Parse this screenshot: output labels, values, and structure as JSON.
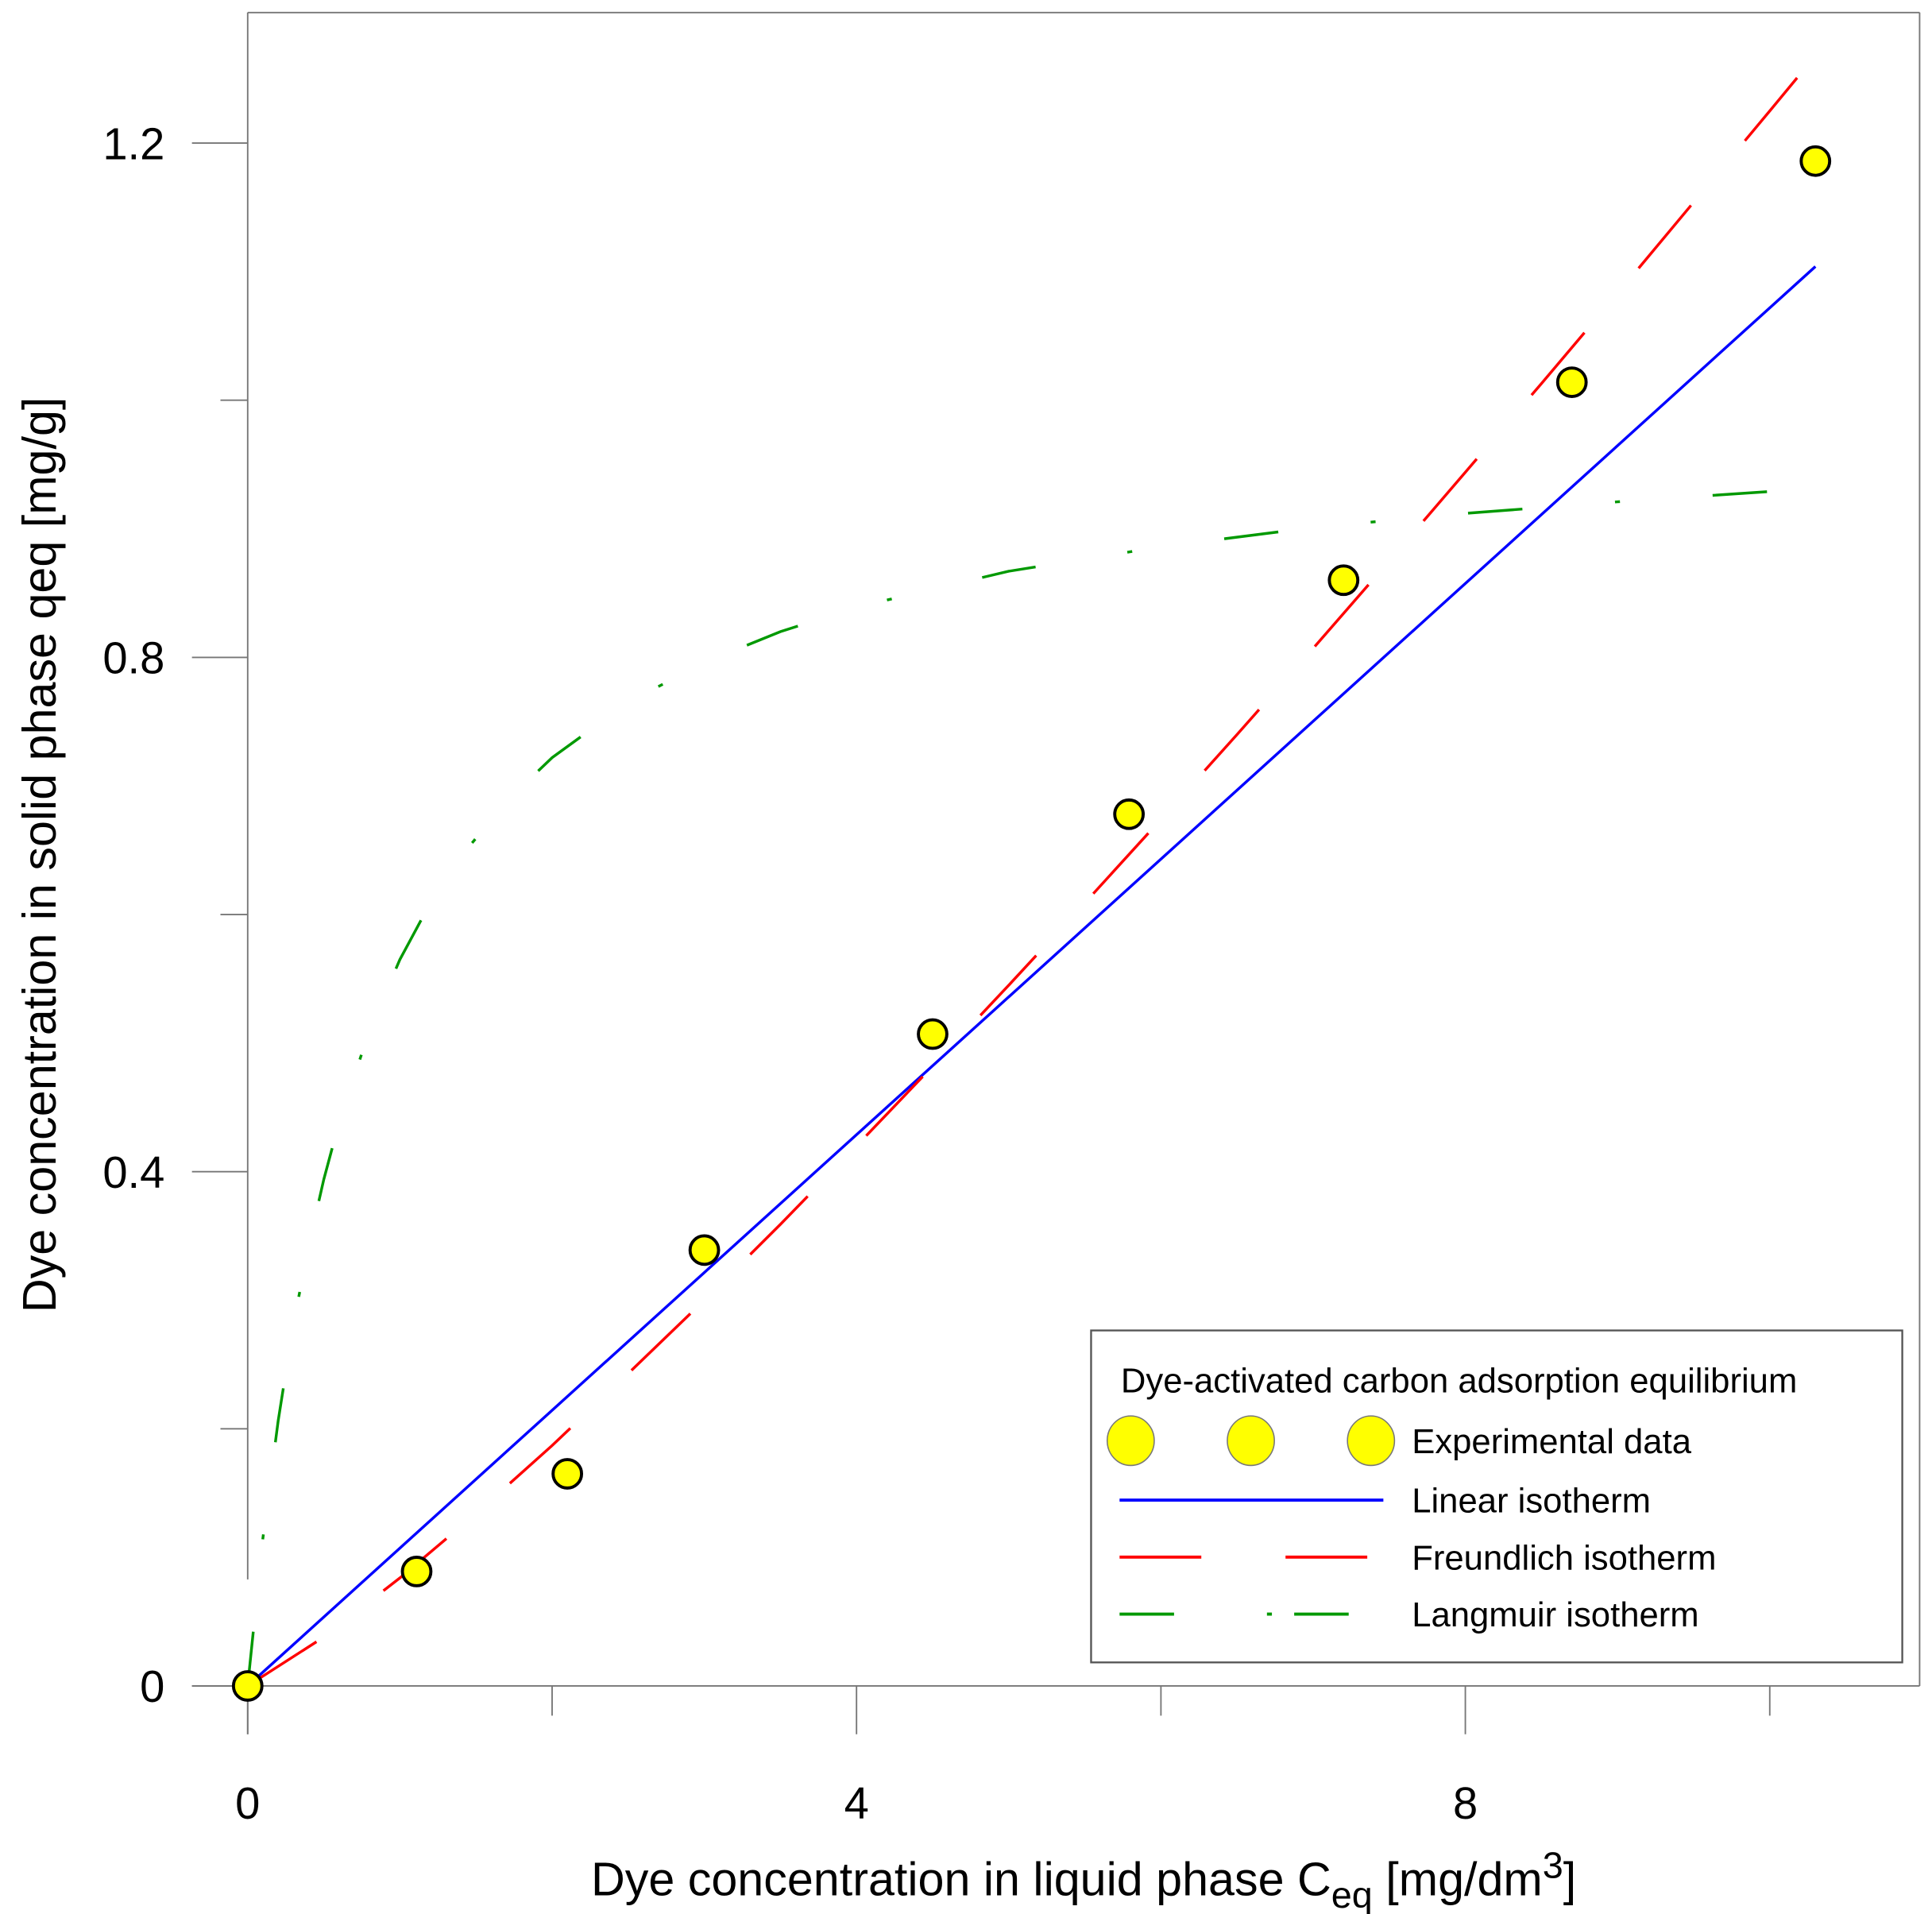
{
  "chart_data": {
    "type": "scatter",
    "title": "",
    "xlabel": "Dye concentration in liquid phase C",
    "xlabel_sub": "eq",
    "xlabel_unit_pre": " [mg/dm",
    "xlabel_sup": "3",
    "xlabel_unit_post": "]",
    "ylabel": "Dye concentration in solid phase qeq [mg/g]",
    "xlim": [
      -0.9,
      11
    ],
    "ylim": [
      -0.05,
      1.3
    ],
    "xticks": [
      0,
      4,
      8
    ],
    "xtick_labels": [
      "0",
      "4",
      "8"
    ],
    "xminor_ticks": [
      2,
      6,
      10
    ],
    "yticks": [
      0,
      0.4,
      0.8,
      1.2
    ],
    "ytick_labels": [
      "0",
      "0.4",
      "0.8",
      "1.2"
    ],
    "yminor_ticks": [
      0.2,
      0.6,
      1.0
    ],
    "grid": false,
    "legend": {
      "title": "Dye-activated carbon adsorption equilibrium",
      "placement": "bottom-right",
      "entries": [
        "Experimental data",
        "Linear isotherm",
        "Freundlich isotherm",
        "Langmuir isotherm"
      ]
    },
    "series": [
      {
        "name": "Experimental data",
        "kind": "points",
        "color": "#ffff00",
        "x": [
          0,
          1.11,
          2.1,
          3.0,
          4.5,
          5.79,
          7.2,
          8.7,
          10.3
        ],
        "y": [
          0,
          0.089,
          0.165,
          0.339,
          0.507,
          0.678,
          0.86,
          1.014,
          1.186
        ]
      },
      {
        "name": "Linear isotherm",
        "kind": "line",
        "color": "#0000ff",
        "x": [
          0,
          10.3
        ],
        "y": [
          0,
          1.104
        ]
      },
      {
        "name": "Freundlich isotherm",
        "kind": "line",
        "color": "#ff0000",
        "dash": "long-dash",
        "x": [
          0,
          0.5,
          1,
          1.5,
          2,
          2.5,
          3,
          3.5,
          4,
          4.5,
          5,
          5.5,
          6,
          6.5,
          7,
          7.5,
          8,
          8.5,
          9,
          9.5,
          10,
          10.3
        ],
        "y": [
          0,
          0.038,
          0.084,
          0.134,
          0.187,
          0.243,
          0.3,
          0.359,
          0.42,
          0.482,
          0.545,
          0.609,
          0.674,
          0.74,
          0.807,
          0.875,
          0.944,
          1.013,
          1.083,
          1.154,
          1.225,
          1.268
        ]
      },
      {
        "name": "Langmuir isotherm",
        "kind": "line",
        "color": "#009900",
        "dash": "dash-dot",
        "x": [
          0,
          0.1,
          0.2,
          0.3,
          0.4,
          0.5,
          0.6,
          0.8,
          1,
          1.2,
          1.4,
          1.7,
          2,
          2.5,
          3,
          3.5,
          4,
          5,
          6,
          7,
          8,
          9,
          10,
          10.3
        ],
        "y": [
          0,
          0.115,
          0.206,
          0.281,
          0.342,
          0.394,
          0.438,
          0.51,
          0.565,
          0.609,
          0.645,
          0.688,
          0.722,
          0.765,
          0.796,
          0.82,
          0.839,
          0.867,
          0.886,
          0.901,
          0.912,
          0.921,
          0.929,
          0.931
        ]
      }
    ]
  }
}
